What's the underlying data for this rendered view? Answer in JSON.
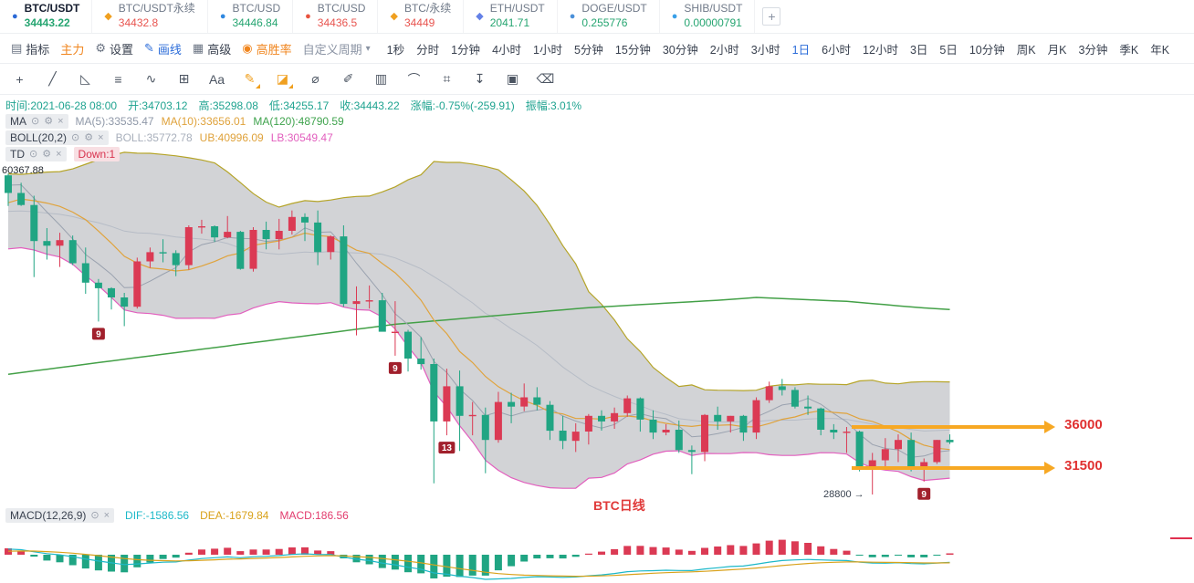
{
  "add_button": "+",
  "tickers": [
    {
      "label": "BTC/USDT",
      "price": "34443.22",
      "icon": "●",
      "icon_color": "#2b69d6",
      "price_color": "#26a571",
      "active": true
    },
    {
      "label": "BTC/USDT永续",
      "price": "34432.8",
      "icon": "◆",
      "icon_color": "#f0a020",
      "price_color": "#e8544f",
      "active": false
    },
    {
      "label": "BTC/USD",
      "price": "34446.84",
      "icon": "●",
      "icon_color": "#2f88e0",
      "price_color": "#26a571",
      "active": false
    },
    {
      "label": "BTC/USD",
      "price": "34436.5",
      "icon": "●",
      "icon_color": "#e8543f",
      "price_color": "#e8544f",
      "active": false
    },
    {
      "label": "BTC/永续",
      "price": "34449",
      "icon": "◆",
      "icon_color": "#f0a020",
      "price_color": "#e8544f",
      "active": false
    },
    {
      "label": "ETH/USDT",
      "price": "2041.71",
      "icon": "◆",
      "icon_color": "#6481e7",
      "price_color": "#26a571",
      "active": false
    },
    {
      "label": "DOGE/USDT",
      "price": "0.255776",
      "icon": "●",
      "icon_color": "#4a90d9",
      "price_color": "#26a571",
      "active": false
    },
    {
      "label": "SHIB/USDT",
      "price": "0.00000791",
      "icon": "●",
      "icon_color": "#3aa0e8",
      "price_color": "#26a571",
      "active": false
    }
  ],
  "toolbar": {
    "left_items": [
      {
        "name": "indicators-button",
        "icon": "▤",
        "label": "指标"
      },
      {
        "name": "main-force-button",
        "label": "主力",
        "color": "#f0851d"
      },
      {
        "name": "settings-button",
        "icon": "⚙",
        "label": "设置"
      },
      {
        "name": "draw-line-button",
        "icon": "✎",
        "label": "画线",
        "color": "#2b6cd9"
      },
      {
        "name": "advanced-button",
        "icon": "▦",
        "label": "高级"
      },
      {
        "name": "win-rate-button",
        "icon": "◉",
        "label": "高胜率",
        "color": "#f0851d"
      },
      {
        "name": "custom-period-button",
        "label": "自定义周期",
        "color": "#8a93a3",
        "caret": true
      }
    ],
    "timeframes": [
      "1秒",
      "分时",
      "1分钟",
      "4小时",
      "1小时",
      "5分钟",
      "15分钟",
      "30分钟",
      "2小时",
      "3小时",
      "1日",
      "6小时",
      "12小时",
      "3日",
      "5日",
      "10分钟",
      "周K",
      "月K",
      "3分钟",
      "季K",
      "年K"
    ],
    "active_timeframe": "1日"
  },
  "draw_tools": [
    {
      "name": "crosshair-icon",
      "glyph": "+"
    },
    {
      "name": "trendline-icon",
      "glyph": "╱"
    },
    {
      "name": "triangle-tool-icon",
      "glyph": "◺"
    },
    {
      "name": "parallel-lines-icon",
      "glyph": "≡"
    },
    {
      "name": "wave-tool-icon",
      "glyph": "∿"
    },
    {
      "name": "fib-box-icon",
      "glyph": "⊞"
    },
    {
      "name": "text-tool-icon",
      "glyph": "Aa"
    },
    {
      "name": "highlight-brush-icon",
      "glyph": "✎",
      "accent": true,
      "badge": true
    },
    {
      "name": "marker-brush-icon",
      "glyph": "◪",
      "accent": true,
      "badge": true
    },
    {
      "name": "ellipse-tool-icon",
      "glyph": "⌀"
    },
    {
      "name": "pencil-tool-icon",
      "glyph": "✐"
    },
    {
      "name": "pattern-tool-icon",
      "glyph": "▥"
    },
    {
      "name": "arc-tool-icon",
      "glyph": "⌒"
    },
    {
      "name": "magnet-tool-icon",
      "glyph": "⌗"
    },
    {
      "name": "export-icon",
      "glyph": "↧"
    },
    {
      "name": "copy-icon",
      "glyph": "▣"
    },
    {
      "name": "delete-icon",
      "glyph": "⌫"
    }
  ],
  "info_bar": {
    "time": "时间:2021-06-28 08:00",
    "open": "开:34703.12",
    "high": "高:35298.08",
    "low": "低:34255.17",
    "close": "收:34443.22",
    "change": "涨幅:-0.75%(-259.91)",
    "amplitude": "振幅:3.01%"
  },
  "indicators": {
    "ma": {
      "title": "MA",
      "v1": "MA(5):33535.47",
      "v2": "MA(10):33656.01",
      "v3": "MA(120):48790.59"
    },
    "boll": {
      "title": "BOLL(20,2)",
      "v1": "BOLL:35772.78",
      "v2": "UB:40996.09",
      "v3": "LB:30549.47"
    },
    "td": {
      "title": "TD",
      "value": "Down:1"
    }
  },
  "macd_header": {
    "title": "MACD(12,26,9)",
    "dif": "DIF:-1586.56",
    "dea": "DEA:-1679.84",
    "macd": "MACD:186.56"
  },
  "annotations": {
    "left_price": "60367.88",
    "arrow1_label": "36000",
    "arrow2_label": "31500",
    "low_note": "28800 →",
    "caption": "BTC日线"
  },
  "chart_data": {
    "type": "candlestick",
    "symbol": "BTC/USDT",
    "interval": "1日",
    "title": "BTC/USDT 日线 (蜡烛图 + BOLL(20,2) + MA + TD + MACD(12,26,9))",
    "current": {
      "open": 34703.12,
      "high": 35298.08,
      "low": 34255.17,
      "close": 34443.22,
      "change_pct": -0.75,
      "change_abs": -259.91,
      "amplitude_pct": 3.01
    },
    "indicator_values": {
      "ma5": 33535.47,
      "ma10": 33656.01,
      "ma120": 48790.59,
      "boll_mid": 35772.78,
      "boll_ub": 40996.09,
      "boll_lb": 30549.47,
      "dif": -1586.56,
      "dea": -1679.84,
      "macd": 186.56,
      "td": "Down:1"
    },
    "price_lines": [
      {
        "price": 36000,
        "label": "36000"
      },
      {
        "price": 31500,
        "label": "31500"
      }
    ],
    "low_label": {
      "price": 28800,
      "label": "28800"
    },
    "top_label": 60367.88,
    "pre_closes": [
      57600,
      58800,
      58900,
      58700,
      59000,
      57100,
      58200,
      59100,
      58000,
      56000,
      58100,
      58300,
      59800,
      60000,
      59900,
      63500,
      63100,
      63300
    ],
    "ohlc": [
      [
        63300,
        63500,
        60000,
        61400
      ],
      [
        61400,
        62500,
        60000,
        60100
      ],
      [
        60100,
        61100,
        52300,
        56200
      ],
      [
        56200,
        57600,
        54200,
        55700
      ],
      [
        55700,
        57100,
        53400,
        56300
      ],
      [
        56300,
        56800,
        53600,
        53800
      ],
      [
        53800,
        55500,
        50500,
        51700
      ],
      [
        51700,
        52100,
        47500,
        51100
      ],
      [
        51100,
        51200,
        48800,
        50100
      ],
      [
        50100,
        50600,
        47000,
        49100
      ],
      [
        49100,
        54400,
        48900,
        54000
      ],
      [
        54000,
        55500,
        53300,
        55000
      ],
      [
        55000,
        56400,
        53900,
        54900
      ],
      [
        54900,
        55200,
        52400,
        53600
      ],
      [
        53600,
        57900,
        53100,
        57700
      ],
      [
        57700,
        58500,
        57000,
        57800
      ],
      [
        57800,
        57900,
        56100,
        56600
      ],
      [
        56600,
        58900,
        56500,
        57200
      ],
      [
        57200,
        57300,
        53100,
        53200
      ],
      [
        53200,
        57700,
        52900,
        57400
      ],
      [
        57400,
        58300,
        55300,
        56400
      ],
      [
        56400,
        58600,
        55300,
        57300
      ],
      [
        57300,
        59500,
        56900,
        58800
      ],
      [
        58800,
        59200,
        56200,
        58200
      ],
      [
        58200,
        59500,
        53600,
        55000
      ],
      [
        55000,
        56800,
        54200,
        56700
      ],
      [
        56700,
        57900,
        49100,
        49400
      ],
      [
        49400,
        51300,
        46000,
        49700
      ],
      [
        49700,
        51400,
        48900,
        49800
      ],
      [
        49800,
        50600,
        46700,
        46400
      ],
      [
        46400,
        49700,
        43800,
        46400
      ],
      [
        46400,
        46600,
        42100,
        43500
      ],
      [
        43500,
        45800,
        42300,
        42900
      ],
      [
        42900,
        43500,
        30000,
        36700
      ],
      [
        36700,
        42400,
        35200,
        40500
      ],
      [
        40500,
        42200,
        33500,
        37300
      ],
      [
        37300,
        38800,
        35200,
        37400
      ],
      [
        37400,
        38200,
        31100,
        34700
      ],
      [
        34700,
        39900,
        34400,
        38800
      ],
      [
        38800,
        39800,
        36500,
        38300
      ],
      [
        38300,
        40800,
        37800,
        39300
      ],
      [
        39300,
        40400,
        37900,
        38500
      ],
      [
        38500,
        38900,
        34700,
        35700
      ],
      [
        35700,
        37300,
        33700,
        34600
      ],
      [
        34600,
        36500,
        33400,
        35600
      ],
      [
        35600,
        37500,
        34200,
        37300
      ],
      [
        37300,
        37900,
        35700,
        36700
      ],
      [
        36700,
        38200,
        35900,
        37600
      ],
      [
        37600,
        39500,
        37200,
        39200
      ],
      [
        39200,
        39300,
        35600,
        36900
      ],
      [
        36900,
        37900,
        34800,
        35500
      ],
      [
        35500,
        36400,
        35200,
        35800
      ],
      [
        35800,
        36800,
        33300,
        33600
      ],
      [
        33600,
        34100,
        31000,
        33400
      ],
      [
        33400,
        37500,
        32400,
        37400
      ],
      [
        37400,
        38300,
        35800,
        36700
      ],
      [
        36700,
        37300,
        35500,
        37300
      ],
      [
        37300,
        37400,
        34600,
        35500
      ],
      [
        35500,
        39300,
        34800,
        39000
      ],
      [
        39000,
        41000,
        38700,
        40500
      ],
      [
        40500,
        41300,
        39500,
        40100
      ],
      [
        40100,
        40400,
        38100,
        38300
      ],
      [
        38300,
        39500,
        37400,
        38100
      ],
      [
        38100,
        38200,
        35200,
        35800
      ],
      [
        35800,
        36400,
        34800,
        35500
      ],
      [
        35500,
        36100,
        33300,
        35600
      ],
      [
        35600,
        35700,
        31300,
        31600
      ],
      [
        31600,
        33300,
        28800,
        32500
      ],
      [
        32500,
        34900,
        31700,
        33700
      ],
      [
        33700,
        35300,
        32300,
        34700
      ],
      [
        34700,
        35500,
        31300,
        31600
      ],
      [
        31600,
        32700,
        30200,
        32300
      ],
      [
        32300,
        34700,
        32100,
        34700
      ],
      [
        34703,
        35298,
        34255,
        34443
      ]
    ],
    "ma120": [
      41800,
      41980,
      42160,
      42340,
      42520,
      42700,
      42880,
      43060,
      43240,
      43420,
      43600,
      43780,
      43960,
      44140,
      44320,
      44500,
      44680,
      44860,
      45040,
      45220,
      45400,
      45580,
      45760,
      45940,
      46120,
      46300,
      46480,
      46660,
      46840,
      47020,
      47200,
      47320,
      47440,
      47560,
      47680,
      47800,
      47920,
      48040,
      48160,
      48280,
      48400,
      48520,
      48640,
      48760,
      48880,
      49000,
      49080,
      49160,
      49240,
      49320,
      49400,
      49480,
      49560,
      49640,
      49720,
      49800,
      49900,
      50000,
      50100,
      50040,
      49980,
      49920,
      49860,
      49800,
      49740,
      49680,
      49560,
      49440,
      49320,
      49200,
      49080,
      48970,
      48880,
      48790
    ],
    "td_badges": [
      {
        "index": 7,
        "label": "9"
      },
      {
        "index": 30,
        "label": "9"
      },
      {
        "index": 34,
        "label": "13"
      },
      {
        "index": 71,
        "label": "9"
      }
    ],
    "colors": {
      "up": "#db3a54",
      "down": "#20a583",
      "boll_upper": "#b5a428",
      "boll_mid": "#b6bcc6",
      "boll_lower": "#e25fbe",
      "ma5": "#9aa2af",
      "ma10": "#e0a33c",
      "ma120": "#43a047",
      "dif": "#1cb8c8",
      "dea": "#d9a21b",
      "band_fill": "rgba(125,130,138,0.35)",
      "arrow": "#f7a823",
      "label_red": "#e03131",
      "badge": "#a1202c"
    }
  }
}
